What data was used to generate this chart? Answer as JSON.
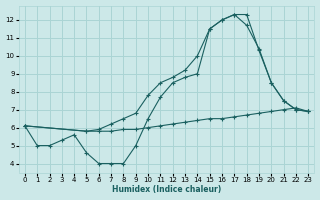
{
  "xlabel": "Humidex (Indice chaleur)",
  "bg_color": "#cce8e8",
  "line_color": "#1a6060",
  "grid_color": "#aad4d4",
  "xlim": [
    -0.5,
    23.5
  ],
  "ylim": [
    3.5,
    12.8
  ],
  "xticks": [
    0,
    1,
    2,
    3,
    4,
    5,
    6,
    7,
    8,
    9,
    10,
    11,
    12,
    13,
    14,
    15,
    16,
    17,
    18,
    19,
    20,
    21,
    22,
    23
  ],
  "yticks": [
    4,
    5,
    6,
    7,
    8,
    9,
    10,
    11,
    12
  ],
  "line1_x": [
    0,
    1,
    2,
    3,
    4,
    5,
    6,
    7,
    8,
    9,
    10,
    11,
    12,
    13,
    14,
    15,
    16,
    17,
    18,
    19,
    20,
    21,
    22,
    23
  ],
  "line1_y": [
    6.1,
    5.0,
    5.0,
    5.3,
    5.6,
    4.6,
    4.0,
    4.0,
    4.0,
    5.0,
    6.5,
    7.7,
    8.5,
    8.8,
    9.0,
    11.5,
    12.0,
    12.3,
    12.3,
    10.3,
    8.5,
    7.5,
    7.0,
    6.9
  ],
  "line2_x": [
    0,
    5,
    6,
    7,
    8,
    9,
    10,
    11,
    12,
    13,
    14,
    15,
    16,
    17,
    18,
    19,
    20,
    21,
    22,
    23
  ],
  "line2_y": [
    6.1,
    5.8,
    5.8,
    5.8,
    5.9,
    5.9,
    6.0,
    6.1,
    6.2,
    6.3,
    6.4,
    6.5,
    6.5,
    6.6,
    6.7,
    6.8,
    6.9,
    7.0,
    7.1,
    6.9
  ],
  "line3_x": [
    0,
    5,
    6,
    7,
    8,
    9,
    10,
    11,
    12,
    13,
    14,
    15,
    16,
    17,
    18,
    19,
    20,
    21,
    22,
    23
  ],
  "line3_y": [
    6.1,
    5.8,
    5.9,
    6.2,
    6.5,
    6.8,
    7.8,
    8.5,
    8.8,
    9.2,
    10.0,
    11.5,
    12.0,
    12.3,
    11.7,
    10.4,
    8.5,
    7.5,
    7.0,
    6.9
  ]
}
